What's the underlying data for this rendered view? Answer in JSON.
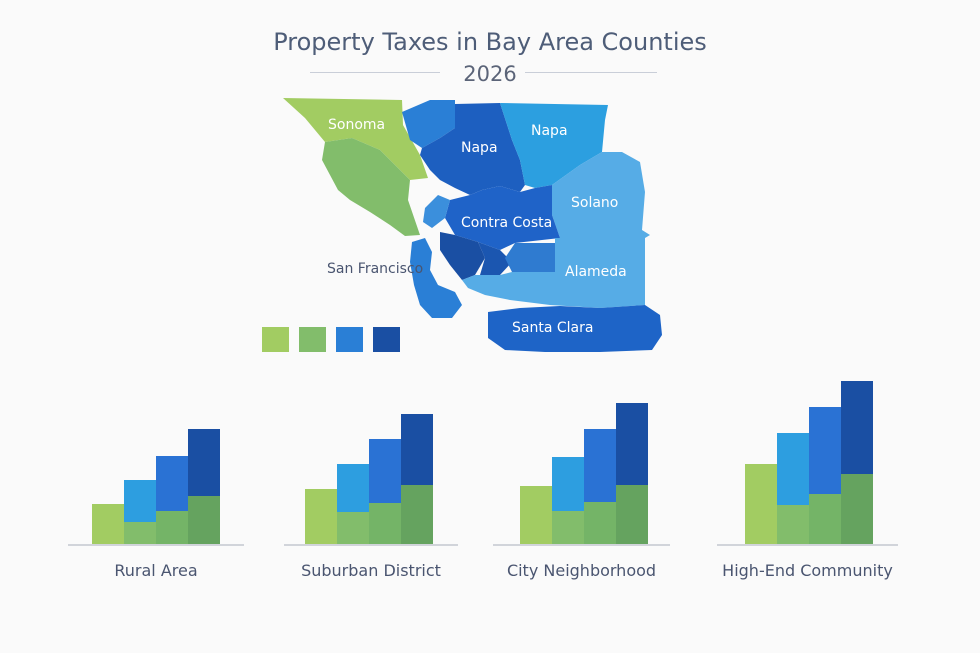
{
  "title": "Property Taxes in Bay Area Counties",
  "subtitle": "2026",
  "colors": {
    "green_light": "#a2cc62",
    "green_mid": "#82bd6b",
    "green_dark": "#65a35f",
    "blue_sky": "#2d9ee0",
    "blue_mid": "#2a72d4",
    "blue_deep": "#1a4fa3",
    "blue_light": "#56ace6"
  },
  "map": {
    "counties": [
      {
        "name": "Sonoma",
        "color": "#a2cc62"
      },
      {
        "name": "Napa",
        "color": "#1d5fc0"
      },
      {
        "name": "Napa",
        "color": "#2c9fe0"
      },
      {
        "name": "Solano",
        "color": "#56ace6"
      },
      {
        "name": "Contra Costa",
        "color": "#1f63c8"
      },
      {
        "name": "San Francisco",
        "color": "#2a7fd6"
      },
      {
        "name": "Alameda",
        "color": "#56ace6"
      },
      {
        "name": "Santa Clara",
        "color": "#1e64c7"
      }
    ],
    "legend": [
      "#a2cc62",
      "#82bd6b",
      "#2a7fd6",
      "#1a4fa3"
    ]
  },
  "chart_data": {
    "type": "bar",
    "categories": [
      "Rural Area",
      "Suburban District",
      "City Neighborhood",
      "High-End Community"
    ],
    "series": [
      {
        "color": "#a2cc62",
        "values": [
          40,
          55,
          58,
          80
        ]
      },
      {
        "color": "#2d9ee0",
        "values": [
          64,
          80,
          87,
          111
        ]
      },
      {
        "color": "#2a72d4",
        "values": [
          88,
          105,
          115,
          137
        ]
      },
      {
        "color": "#1a4fa3",
        "values": [
          115,
          130,
          141,
          163
        ]
      }
    ],
    "stacked_lower": [
      {
        "color": "#82bd6b",
        "values": [
          22,
          32,
          33,
          39
        ]
      },
      {
        "color": "#74b467",
        "values": [
          33,
          41,
          42,
          50
        ]
      },
      {
        "color": "#65a35f",
        "values": [
          48,
          59,
          59,
          70
        ]
      }
    ],
    "xlabel": "",
    "ylabel": "",
    "ylim": [
      0,
      170
    ],
    "grid": false,
    "axis": "baseline only"
  }
}
